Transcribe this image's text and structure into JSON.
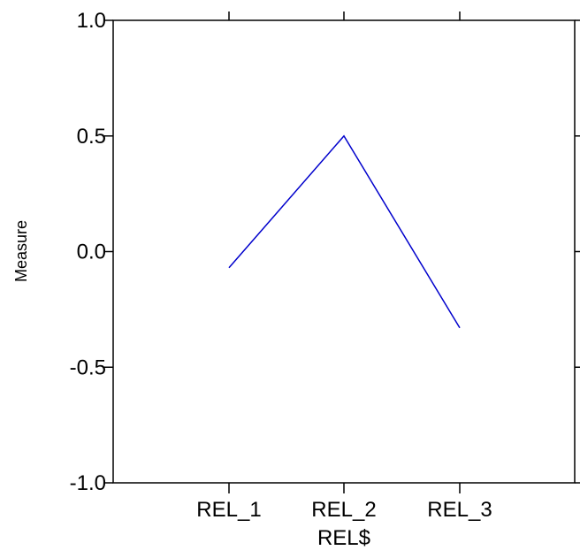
{
  "chart_data": {
    "type": "line",
    "categories": [
      "REL_1",
      "REL_2",
      "REL_3"
    ],
    "series": [
      {
        "values": [
          -0.07,
          0.5,
          -0.33
        ],
        "color": "#0000cc"
      }
    ],
    "xlabel": "REL$",
    "ylabel": "Measure",
    "ylim": [
      -1.0,
      1.0
    ],
    "yticks": [
      "-1.0",
      "-0.5",
      "0.0",
      "0.5",
      "1.0"
    ],
    "grid": false
  }
}
